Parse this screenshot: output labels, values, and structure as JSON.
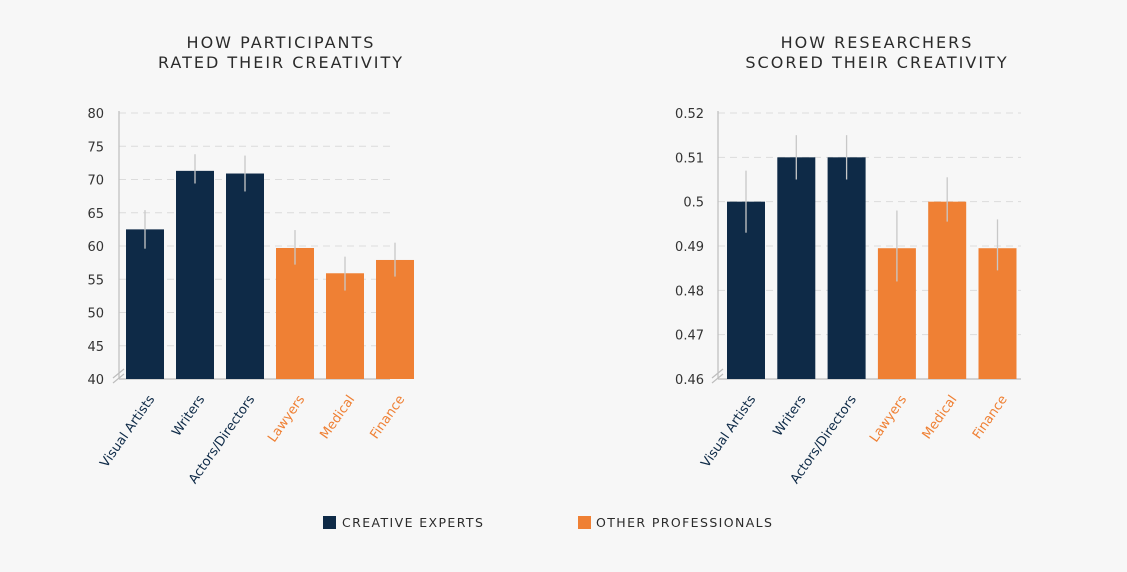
{
  "colors": {
    "creative": "#0e2a47",
    "other": "#ef8034",
    "error": "#c8c8c8",
    "grid": "#dcdcdc",
    "axis": "#bdbdbd"
  },
  "legend": {
    "creative_label": "CREATIVE EXPERTS",
    "other_label": "OTHER PROFESSIONALS"
  },
  "chart_data": [
    {
      "type": "bar",
      "title": [
        "HOW PARTICIPANTS",
        "RATED THEIR CREATIVITY"
      ],
      "categories": [
        "Visual Artists",
        "Writers",
        "Actors/Directors",
        "Lawyers",
        "Medical",
        "Finance"
      ],
      "groups": [
        "creative",
        "creative",
        "creative",
        "other",
        "other",
        "other"
      ],
      "values": [
        62.5,
        71.3,
        70.9,
        59.7,
        55.9,
        57.9
      ],
      "error_low": [
        59.6,
        69.4,
        68.2,
        57.2,
        53.3,
        55.4
      ],
      "error_high": [
        65.4,
        73.8,
        73.6,
        62.4,
        58.4,
        60.5
      ],
      "ylim": [
        40,
        80
      ],
      "yticks": [
        40,
        45,
        50,
        55,
        60,
        65,
        70,
        75,
        80
      ],
      "ytick_labels": [
        "40",
        "45",
        "50",
        "55",
        "60",
        "65",
        "70",
        "75",
        "80"
      ],
      "axis_break": true,
      "grid": true
    },
    {
      "type": "bar",
      "title": [
        "HOW RESEARCHERS",
        "SCORED THEIR CREATIVITY"
      ],
      "categories": [
        "Visual Artists",
        "Writers",
        "Actors/Directors",
        "Lawyers",
        "Medical",
        "Finance"
      ],
      "groups": [
        "creative",
        "creative",
        "creative",
        "other",
        "other",
        "other"
      ],
      "values": [
        0.5,
        0.51,
        0.51,
        0.4895,
        0.5,
        0.4895
      ],
      "error_low": [
        0.493,
        0.505,
        0.505,
        0.482,
        0.4955,
        0.4845
      ],
      "error_high": [
        0.507,
        0.515,
        0.515,
        0.498,
        0.5055,
        0.496
      ],
      "ylim": [
        0.46,
        0.52
      ],
      "yticks": [
        0.46,
        0.47,
        0.48,
        0.49,
        0.5,
        0.51,
        0.52
      ],
      "ytick_labels": [
        "0.46",
        "0.47",
        "0.48",
        "0.49",
        "0.5",
        "0.51",
        "0.52"
      ],
      "axis_break": true,
      "grid": true
    }
  ]
}
